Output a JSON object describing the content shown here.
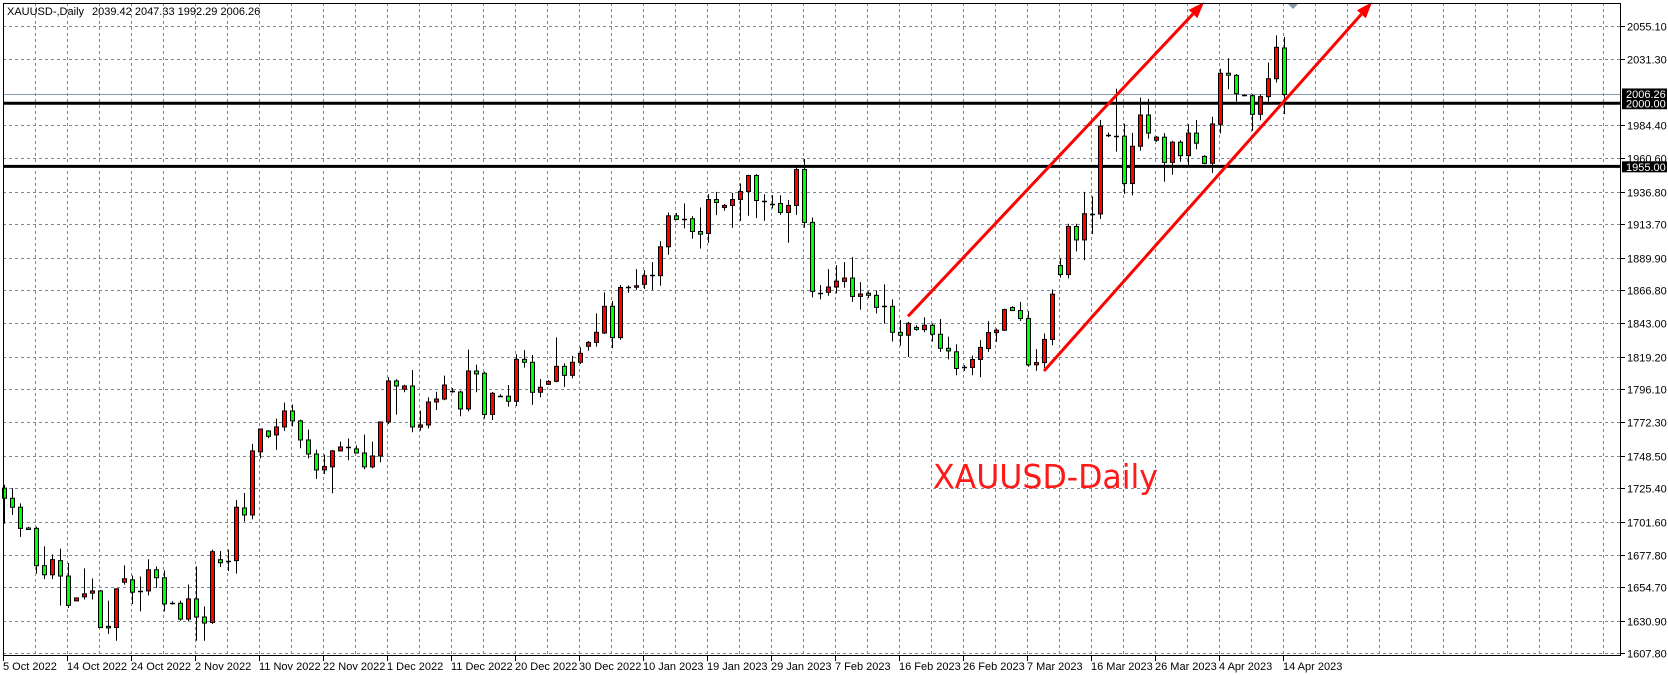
{
  "header": {
    "symbol": "XAUUSD-,Daily",
    "ohlc": "2039.42 2047.33 1992.29 2006.26"
  },
  "annotation_text": "XAUUSD-Daily",
  "colors": {
    "background": "#ffffff",
    "grid": "#778899",
    "bull_body": "#ff0000",
    "bear_body": "#00ff00",
    "outline": "#000000",
    "trend_line": "#ff0000",
    "level_line": "#000000",
    "bid_line": "#8a9aac",
    "shift_marker": "#8899aa"
  },
  "chart_data": {
    "type": "candlestick",
    "title": "XAUUSD-,Daily",
    "timeframe": "Daily",
    "ylim": [
      1607.8,
      2055.1
    ],
    "grid": true,
    "y_ticks": [
      "2055.10",
      "2031.30",
      "1984.40",
      "1960.60",
      "1936.80",
      "1913.70",
      "1889.90",
      "1866.80",
      "1843.00",
      "1819.20",
      "1796.10",
      "1772.30",
      "1748.50",
      "1725.40",
      "1701.60",
      "1677.80",
      "1654.70",
      "1630.90",
      "1607.80"
    ],
    "x_ticks": [
      {
        "label": "5 Oct 2022",
        "date": "2022-10-05"
      },
      {
        "label": "14 Oct 2022",
        "date": "2022-10-14"
      },
      {
        "label": "24 Oct 2022",
        "date": "2022-10-24"
      },
      {
        "label": "2 Nov 2022",
        "date": "2022-11-02"
      },
      {
        "label": "11 Nov 2022",
        "date": "2022-11-11"
      },
      {
        "label": "22 Nov 2022",
        "date": "2022-11-22"
      },
      {
        "label": "1 Dec 2022",
        "date": "2022-12-01"
      },
      {
        "label": "11 Dec 2022",
        "date": "2022-12-11"
      },
      {
        "label": "20 Dec 2022",
        "date": "2022-12-20"
      },
      {
        "label": "30 Dec 2022",
        "date": "2022-12-30"
      },
      {
        "label": "10 Jan 2023",
        "date": "2023-01-10"
      },
      {
        "label": "19 Jan 2023",
        "date": "2023-01-19"
      },
      {
        "label": "29 Jan 2023",
        "date": "2023-01-29"
      },
      {
        "label": "7 Feb 2023",
        "date": "2023-02-07"
      },
      {
        "label": "16 Feb 2023",
        "date": "2023-02-16"
      },
      {
        "label": "26 Feb 2023",
        "date": "2023-02-26"
      },
      {
        "label": "7 Mar 2023",
        "date": "2023-03-07"
      },
      {
        "label": "16 Mar 2023",
        "date": "2023-03-16"
      },
      {
        "label": "26 Mar 2023",
        "date": "2023-03-26"
      },
      {
        "label": "4 Apr 2023",
        "date": "2023-04-04"
      },
      {
        "label": "14 Apr 2023",
        "date": "2023-04-14"
      }
    ],
    "price_levels": [
      {
        "price": 2000.0,
        "label": "2000.00",
        "style": "thick"
      },
      {
        "price": 1955.0,
        "label": "1955.00",
        "style": "thick"
      }
    ],
    "bid": {
      "price": 2006.26,
      "label": "2006.26"
    },
    "trend_lines": [
      {
        "from": {
          "date": "2023-02-17",
          "price": 1848.0
        },
        "to": {
          "date": "2023-04-02",
          "price": 2072.0
        },
        "arrow": true
      },
      {
        "from": {
          "date": "2023-03-09",
          "price": 1809.0
        },
        "to": {
          "date": "2023-04-27",
          "price": 2072.0
        },
        "arrow": true
      }
    ],
    "columns": [
      "date",
      "open",
      "high",
      "low",
      "close"
    ],
    "candles": [
      [
        "2022-10-05",
        1725.4,
        1727.8,
        1700.0,
        1718.2
      ],
      [
        "2022-10-06",
        1718.2,
        1725.4,
        1706.3,
        1711.8
      ],
      [
        "2022-10-07",
        1711.8,
        1714.6,
        1690.7,
        1696.7
      ],
      [
        "2022-10-09",
        1697.0,
        1697.9,
        1696.0,
        1696.7
      ],
      [
        "2022-10-10",
        1696.7,
        1697.9,
        1664.4,
        1670.1
      ],
      [
        "2022-10-11",
        1670.1,
        1684.0,
        1660.5,
        1663.6
      ],
      [
        "2022-10-12",
        1663.6,
        1678.0,
        1660.5,
        1674.4
      ],
      [
        "2022-10-13",
        1673.7,
        1682.3,
        1641.6,
        1662.7
      ],
      [
        "2022-10-14",
        1662.7,
        1672.0,
        1639.9,
        1641.8
      ],
      [
        "2022-10-16",
        1645.0,
        1647.5,
        1644.7,
        1647.1
      ],
      [
        "2022-10-17",
        1647.9,
        1668.2,
        1646.0,
        1650.0
      ],
      [
        "2022-10-18",
        1650.5,
        1661.0,
        1646.0,
        1652.1
      ],
      [
        "2022-10-19",
        1652.1,
        1652.8,
        1626.0,
        1626.0
      ],
      [
        "2022-10-20",
        1626.8,
        1645.2,
        1621.5,
        1626.5
      ],
      [
        "2022-10-21",
        1626.0,
        1654.0,
        1616.6,
        1653.6
      ],
      [
        "2022-10-23",
        1658.3,
        1670.3,
        1656.6,
        1660.8
      ],
      [
        "2022-10-24",
        1660.0,
        1663.1,
        1642.8,
        1651.2
      ],
      [
        "2022-10-25",
        1651.9,
        1662.4,
        1637.5,
        1651.9
      ],
      [
        "2022-10-26",
        1652.1,
        1674.7,
        1648.8,
        1667.2
      ],
      [
        "2022-10-27",
        1667.2,
        1669.6,
        1654.3,
        1661.5
      ],
      [
        "2022-10-28",
        1661.5,
        1666.8,
        1637.5,
        1642.8
      ],
      [
        "2022-10-30",
        1643.3,
        1644.7,
        1642.3,
        1643.3
      ],
      [
        "2022-10-31",
        1643.3,
        1645.2,
        1630.8,
        1632.0
      ],
      [
        "2022-11-01",
        1632.0,
        1656.7,
        1630.4,
        1646.4
      ],
      [
        "2022-11-02",
        1646.4,
        1669.6,
        1616.6,
        1633.5
      ],
      [
        "2022-11-03",
        1633.5,
        1641.1,
        1616.6,
        1629.2
      ],
      [
        "2022-11-04",
        1629.6,
        1681.6,
        1628.6,
        1680.1
      ],
      [
        "2022-11-06",
        1674.4,
        1680.6,
        1669.2,
        1672.2
      ],
      [
        "2022-11-07",
        1673.4,
        1681.6,
        1666.3,
        1673.4
      ],
      [
        "2022-11-08",
        1673.7,
        1717.0,
        1664.4,
        1711.8
      ],
      [
        "2022-11-09",
        1711.3,
        1722.0,
        1701.6,
        1706.3
      ],
      [
        "2022-11-10",
        1706.3,
        1757.0,
        1703.2,
        1752.0
      ],
      [
        "2022-11-11",
        1751.3,
        1768.0,
        1746.7,
        1767.6
      ],
      [
        "2022-11-13",
        1766.2,
        1766.8,
        1761.0,
        1762.4
      ],
      [
        "2022-11-14",
        1763.4,
        1775.0,
        1752.7,
        1769.1
      ],
      [
        "2022-11-15",
        1769.1,
        1786.4,
        1766.2,
        1780.5
      ],
      [
        "2022-11-16",
        1780.5,
        1785.0,
        1769.5,
        1773.4
      ],
      [
        "2022-11-17",
        1773.4,
        1774.3,
        1753.9,
        1759.8
      ],
      [
        "2022-11-18",
        1759.8,
        1767.2,
        1746.7,
        1749.8
      ],
      [
        "2022-11-21",
        1749.8,
        1752.9,
        1732.0,
        1738.4
      ],
      [
        "2022-11-22",
        1738.4,
        1749.3,
        1735.6,
        1740.8
      ],
      [
        "2022-11-23",
        1740.6,
        1752.7,
        1721.8,
        1752.0
      ],
      [
        "2022-11-24",
        1752.0,
        1758.6,
        1751.7,
        1754.8
      ],
      [
        "2022-11-25",
        1754.8,
        1760.8,
        1745.3,
        1754.8
      ],
      [
        "2022-11-27",
        1753.4,
        1755.8,
        1750.5,
        1750.5
      ],
      [
        "2022-11-28",
        1750.5,
        1763.6,
        1738.9,
        1740.6
      ],
      [
        "2022-11-29",
        1740.6,
        1758.6,
        1739.5,
        1748.4
      ],
      [
        "2022-11-30",
        1748.4,
        1772.6,
        1743.9,
        1772.6
      ],
      [
        "2022-12-01",
        1772.6,
        1804.5,
        1771.2,
        1801.9
      ],
      [
        "2022-12-02",
        1801.9,
        1803.1,
        1777.9,
        1798.3
      ],
      [
        "2022-12-04",
        1796.0,
        1799.2,
        1793.8,
        1798.3
      ],
      [
        "2022-12-05",
        1798.3,
        1809.7,
        1765.3,
        1769.1
      ],
      [
        "2022-12-06",
        1768.9,
        1780.7,
        1766.4,
        1770.5
      ],
      [
        "2022-12-07",
        1770.5,
        1790.2,
        1768.1,
        1786.9
      ],
      [
        "2022-12-08",
        1786.9,
        1794.2,
        1781.2,
        1789.0
      ],
      [
        "2022-12-09",
        1789.0,
        1805.7,
        1788.1,
        1799.0
      ],
      [
        "2022-12-11",
        1794.7,
        1796.9,
        1793.5,
        1794.7
      ],
      [
        "2022-12-12",
        1794.0,
        1795.0,
        1776.7,
        1781.9
      ],
      [
        "2022-12-13",
        1781.9,
        1824.2,
        1780.2,
        1809.0
      ],
      [
        "2022-12-14",
        1809.0,
        1813.5,
        1793.8,
        1806.9
      ],
      [
        "2022-12-15",
        1807.4,
        1808.5,
        1775.0,
        1778.0
      ],
      [
        "2022-12-16",
        1778.0,
        1794.0,
        1774.0,
        1793.1
      ],
      [
        "2022-12-18",
        1791.5,
        1792.4,
        1790.5,
        1791.5
      ],
      [
        "2022-12-19",
        1791.0,
        1799.0,
        1783.6,
        1787.4
      ],
      [
        "2022-12-20",
        1787.4,
        1820.9,
        1784.0,
        1817.3
      ],
      [
        "2022-12-21",
        1817.3,
        1823.9,
        1811.4,
        1815.2
      ],
      [
        "2022-12-22",
        1815.2,
        1820.4,
        1784.8,
        1793.8
      ],
      [
        "2022-12-23",
        1793.8,
        1803.3,
        1790.3,
        1797.4
      ],
      [
        "2022-12-26",
        1799.5,
        1802.5,
        1799.0,
        1801.6
      ],
      [
        "2022-12-27",
        1801.6,
        1833.0,
        1800.9,
        1812.3
      ],
      [
        "2022-12-28",
        1812.3,
        1814.4,
        1797.7,
        1805.9
      ],
      [
        "2022-12-29",
        1805.9,
        1819.7,
        1803.8,
        1815.2
      ],
      [
        "2022-12-30",
        1815.2,
        1825.9,
        1814.0,
        1821.6
      ],
      [
        "2023-01-02",
        1826.6,
        1830.4,
        1823.5,
        1829.4
      ],
      [
        "2023-01-03",
        1829.4,
        1850.1,
        1826.4,
        1836.6
      ],
      [
        "2023-01-04",
        1836.1,
        1865.1,
        1835.4,
        1855.1
      ],
      [
        "2023-01-05",
        1855.1,
        1858.9,
        1825.2,
        1832.8
      ],
      [
        "2023-01-06",
        1832.8,
        1870.3,
        1831.3,
        1868.6
      ],
      [
        "2023-01-08",
        1868.9,
        1870.1,
        1864.8,
        1868.9
      ],
      [
        "2023-01-09",
        1869.1,
        1881.7,
        1866.9,
        1869.8
      ],
      [
        "2023-01-10",
        1870.8,
        1881.0,
        1867.5,
        1877.0
      ],
      [
        "2023-01-11",
        1877.2,
        1886.7,
        1866.7,
        1877.2
      ],
      [
        "2023-01-12",
        1877.0,
        1901.6,
        1869.8,
        1897.6
      ],
      [
        "2023-01-13",
        1897.6,
        1922.1,
        1891.9,
        1919.7
      ],
      [
        "2023-01-15",
        1919.7,
        1921.8,
        1916.6,
        1917.1
      ],
      [
        "2023-01-16",
        1917.3,
        1928.5,
        1910.7,
        1917.3
      ],
      [
        "2023-01-17",
        1917.6,
        1919.5,
        1903.3,
        1908.5
      ],
      [
        "2023-01-18",
        1908.5,
        1925.6,
        1896.4,
        1906.6
      ],
      [
        "2023-01-19",
        1907.1,
        1935.1,
        1900.5,
        1931.3
      ],
      [
        "2023-01-20",
        1931.3,
        1936.8,
        1920.2,
        1929.2
      ],
      [
        "2023-01-22",
        1925.6,
        1928.0,
        1923.3,
        1927.1
      ],
      [
        "2023-01-23",
        1927.1,
        1936.1,
        1911.2,
        1931.3
      ],
      [
        "2023-01-24",
        1931.3,
        1942.7,
        1916.1,
        1937.0
      ],
      [
        "2023-01-25",
        1937.0,
        1949.0,
        1919.7,
        1948.4
      ],
      [
        "2023-01-26",
        1948.4,
        1949.4,
        1918.0,
        1930.6
      ],
      [
        "2023-01-27",
        1930.2,
        1935.1,
        1916.1,
        1930.2
      ],
      [
        "2023-01-29",
        1928.3,
        1934.4,
        1924.9,
        1928.3
      ],
      [
        "2023-01-30",
        1928.5,
        1934.4,
        1920.4,
        1922.1
      ],
      [
        "2023-01-31",
        1922.1,
        1930.9,
        1900.5,
        1927.1
      ],
      [
        "2023-02-01",
        1927.1,
        1954.6,
        1920.4,
        1952.7
      ],
      [
        "2023-02-02",
        1952.7,
        1960.3,
        1911.2,
        1915.0
      ],
      [
        "2023-02-03",
        1915.0,
        1918.5,
        1861.5,
        1865.8
      ],
      [
        "2023-02-05",
        1864.8,
        1870.3,
        1860.1,
        1864.8
      ],
      [
        "2023-02-06",
        1865.1,
        1881.7,
        1862.7,
        1868.9
      ],
      [
        "2023-02-07",
        1868.9,
        1884.5,
        1864.4,
        1873.1
      ],
      [
        "2023-02-08",
        1872.9,
        1886.7,
        1868.4,
        1875.3
      ],
      [
        "2023-02-09",
        1875.3,
        1890.2,
        1858.4,
        1862.2
      ],
      [
        "2023-02-10",
        1862.2,
        1872.4,
        1852.7,
        1863.9
      ],
      [
        "2023-02-12",
        1864.4,
        1865.8,
        1861.0,
        1863.0
      ],
      [
        "2023-02-13",
        1863.0,
        1866.5,
        1850.1,
        1854.4
      ],
      [
        "2023-02-14",
        1855.1,
        1870.8,
        1842.8,
        1855.1
      ],
      [
        "2023-02-15",
        1855.1,
        1860.1,
        1830.0,
        1836.6
      ],
      [
        "2023-02-16",
        1836.6,
        1845.4,
        1827.1,
        1834.5
      ],
      [
        "2023-02-17",
        1834.5,
        1844.0,
        1819.0,
        1843.0
      ],
      [
        "2023-02-19",
        1840.1,
        1841.6,
        1837.7,
        1838.7
      ],
      [
        "2023-02-20",
        1838.5,
        1847.3,
        1836.6,
        1841.6
      ],
      [
        "2023-02-21",
        1841.6,
        1843.0,
        1830.0,
        1835.2
      ],
      [
        "2023-02-22",
        1835.2,
        1846.1,
        1822.6,
        1825.2
      ],
      [
        "2023-02-23",
        1825.2,
        1833.5,
        1817.3,
        1823.3
      ],
      [
        "2023-02-24",
        1822.7,
        1828.1,
        1806.0,
        1810.8
      ],
      [
        "2023-02-26",
        1811.5,
        1813.2,
        1809.1,
        1811.5
      ],
      [
        "2023-02-27",
        1811.5,
        1820.0,
        1806.0,
        1817.2
      ],
      [
        "2023-02-28",
        1817.2,
        1831.0,
        1804.5,
        1825.8
      ],
      [
        "2023-03-01",
        1825.0,
        1844.5,
        1822.6,
        1836.4
      ],
      [
        "2023-03-02",
        1836.4,
        1839.3,
        1829.8,
        1838.1
      ],
      [
        "2023-03-03",
        1838.1,
        1853.5,
        1837.6,
        1852.8
      ],
      [
        "2023-03-05",
        1854.3,
        1855.3,
        1852.1,
        1852.1
      ],
      [
        "2023-03-06",
        1852.1,
        1858.3,
        1844.7,
        1846.4
      ],
      [
        "2023-03-07",
        1846.4,
        1851.6,
        1812.0,
        1813.4
      ],
      [
        "2023-03-08",
        1813.4,
        1824.6,
        1809.1,
        1815.0
      ],
      [
        "2023-03-09",
        1815.0,
        1835.7,
        1811.2,
        1831.5
      ],
      [
        "2023-03-10",
        1831.5,
        1867.1,
        1827.4,
        1863.8
      ],
      [
        "2023-03-12",
        1884.2,
        1889.4,
        1875.6,
        1877.8
      ],
      [
        "2023-03-13",
        1877.8,
        1914.0,
        1875.0,
        1912.1
      ],
      [
        "2023-03-14",
        1912.1,
        1914.0,
        1894.2,
        1902.5
      ],
      [
        "2023-03-15",
        1902.5,
        1936.8,
        1888.0,
        1921.2
      ],
      [
        "2023-03-16",
        1921.2,
        1933.5,
        1906.8,
        1921.2
      ],
      [
        "2023-03-17",
        1921.0,
        1988.0,
        1917.4,
        1983.7
      ],
      [
        "2023-03-19",
        1977.2,
        1979.0,
        1975.8,
        1977.2
      ],
      [
        "2023-03-20",
        1976.7,
        2010.3,
        1965.5,
        1976.7
      ],
      [
        "2023-03-21",
        1976.5,
        1985.4,
        1935.3,
        1942.7
      ],
      [
        "2023-03-22",
        1942.7,
        1978.9,
        1934.3,
        1969.3
      ],
      [
        "2023-03-23",
        1969.3,
        2004.0,
        1966.2,
        1991.6
      ],
      [
        "2023-03-24",
        1991.6,
        2003.1,
        1974.8,
        1978.7
      ],
      [
        "2023-03-26",
        1973.6,
        1976.5,
        1972.4,
        1975.8
      ],
      [
        "2023-03-27",
        1975.8,
        1978.7,
        1944.0,
        1957.8
      ],
      [
        "2023-03-28",
        1957.8,
        1973.2,
        1949.0,
        1972.2
      ],
      [
        "2023-03-29",
        1972.2,
        1973.6,
        1958.3,
        1962.6
      ],
      [
        "2023-03-30",
        1962.6,
        1985.1,
        1955.4,
        1978.7
      ],
      [
        "2023-03-31",
        1978.7,
        1988.0,
        1967.2,
        1971.5
      ],
      [
        "2023-04-02",
        1962.1,
        1962.9,
        1956.6,
        1957.1
      ],
      [
        "2023-04-03",
        1957.2,
        1990.4,
        1950.2,
        1985.2
      ],
      [
        "2023-04-04",
        1985.0,
        2024.6,
        1978.5,
        2021.4
      ],
      [
        "2023-04-05",
        2021.4,
        2032.1,
        2010.0,
        2020.0
      ],
      [
        "2023-04-06",
        2019.9,
        2020.9,
        2001.2,
        2006.8
      ],
      [
        "2023-04-09",
        2005.7,
        2006.3,
        2005.0,
        2005.7
      ],
      [
        "2023-04-10",
        2005.4,
        2006.5,
        1980.3,
        1992.1
      ],
      [
        "2023-04-11",
        1992.1,
        2006.2,
        1987.9,
        2004.7
      ],
      [
        "2023-04-12",
        2004.7,
        2029.0,
        2001.2,
        2017.5
      ],
      [
        "2023-04-13",
        2017.5,
        2048.4,
        2014.8,
        2039.9
      ],
      [
        "2023-04-14",
        2039.42,
        2047.33,
        1992.29,
        2006.26
      ]
    ]
  }
}
